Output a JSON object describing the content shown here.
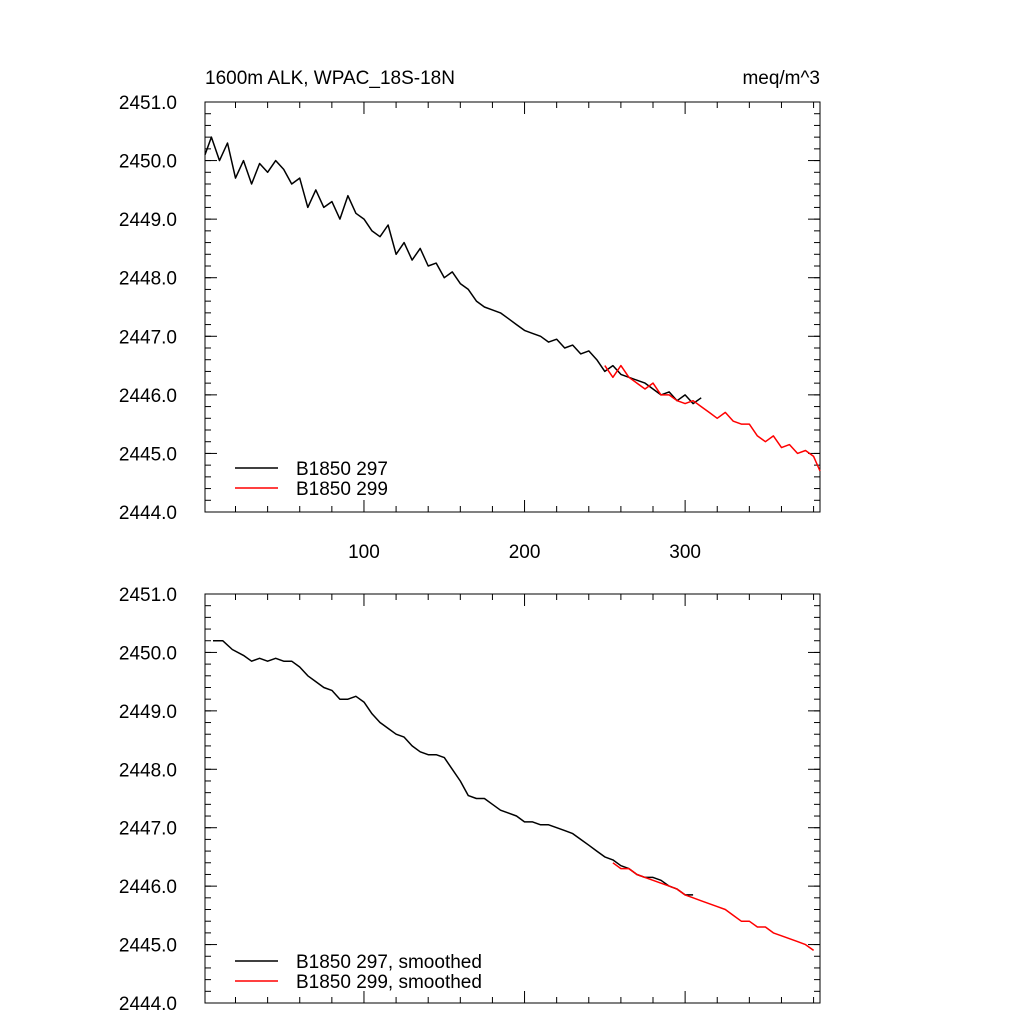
{
  "chart_data": [
    {
      "type": "line",
      "title_left": "1600m ALK, WPAC_18S-18N",
      "title_right": "meq/m^3",
      "xlim": [
        1,
        384
      ],
      "ylim": [
        2444.0,
        2451.0
      ],
      "x_ticks": [
        "100",
        "200",
        "300"
      ],
      "y_ticks": [
        "2444.0",
        "2445.0",
        "2446.0",
        "2447.0",
        "2448.0",
        "2449.0",
        "2450.0",
        "2451.0"
      ],
      "legend_position": "bottom-left",
      "series": [
        {
          "name": "B1850 297",
          "color": "#000000",
          "x": [
            1,
            5,
            10,
            15,
            20,
            25,
            30,
            35,
            40,
            45,
            50,
            55,
            60,
            65,
            70,
            75,
            80,
            85,
            90,
            95,
            100,
            105,
            110,
            115,
            120,
            125,
            130,
            135,
            140,
            145,
            150,
            155,
            160,
            165,
            170,
            175,
            180,
            185,
            190,
            195,
            200,
            205,
            210,
            215,
            220,
            225,
            230,
            235,
            240,
            245,
            250,
            255,
            260,
            265,
            270,
            275,
            280,
            285,
            290,
            295,
            300,
            305,
            310
          ],
          "y": [
            2450.1,
            2450.4,
            2450.0,
            2450.3,
            2449.7,
            2450.0,
            2449.6,
            2449.95,
            2449.8,
            2450.0,
            2449.85,
            2449.6,
            2449.7,
            2449.2,
            2449.5,
            2449.2,
            2449.3,
            2449.0,
            2449.4,
            2449.1,
            2449.0,
            2448.8,
            2448.7,
            2448.9,
            2448.4,
            2448.6,
            2448.3,
            2448.5,
            2448.2,
            2448.25,
            2448.0,
            2448.1,
            2447.9,
            2447.8,
            2447.6,
            2447.5,
            2447.45,
            2447.4,
            2447.3,
            2447.2,
            2447.1,
            2447.05,
            2447.0,
            2446.9,
            2446.95,
            2446.8,
            2446.85,
            2446.7,
            2446.75,
            2446.6,
            2446.4,
            2446.5,
            2446.35,
            2446.3,
            2446.25,
            2446.2,
            2446.1,
            2446.0,
            2446.05,
            2445.9,
            2446.0,
            2445.85,
            2445.95
          ]
        },
        {
          "name": "B1850 299",
          "color": "#ff0000",
          "x": [
            250,
            255,
            260,
            265,
            270,
            275,
            280,
            285,
            290,
            295,
            300,
            305,
            310,
            315,
            320,
            325,
            330,
            335,
            340,
            345,
            350,
            355,
            360,
            365,
            370,
            375,
            380,
            384
          ],
          "y": [
            2446.5,
            2446.3,
            2446.5,
            2446.3,
            2446.2,
            2446.1,
            2446.2,
            2446.0,
            2446.0,
            2445.9,
            2445.85,
            2445.9,
            2445.8,
            2445.7,
            2445.6,
            2445.7,
            2445.55,
            2445.5,
            2445.5,
            2445.3,
            2445.2,
            2445.3,
            2445.1,
            2445.15,
            2445.0,
            2445.05,
            2444.95,
            2444.7
          ]
        }
      ]
    },
    {
      "type": "line",
      "xlim": [
        1,
        384
      ],
      "ylim": [
        2444.0,
        2451.0
      ],
      "y_ticks": [
        "2444.0",
        "2445.0",
        "2446.0",
        "2447.0",
        "2448.0",
        "2449.0",
        "2450.0",
        "2451.0"
      ],
      "legend_position": "bottom-left",
      "series": [
        {
          "name": "B1850 297, smoothed",
          "color": "#000000",
          "x": [
            6,
            12,
            18,
            25,
            30,
            35,
            40,
            45,
            50,
            55,
            60,
            65,
            70,
            75,
            80,
            85,
            90,
            95,
            100,
            105,
            110,
            115,
            120,
            125,
            130,
            135,
            140,
            145,
            150,
            155,
            160,
            165,
            170,
            175,
            180,
            185,
            190,
            195,
            200,
            205,
            210,
            215,
            220,
            225,
            230,
            235,
            240,
            245,
            250,
            255,
            260,
            265,
            270,
            275,
            280,
            285,
            290,
            295,
            300,
            305
          ],
          "y": [
            2450.2,
            2450.2,
            2450.05,
            2449.95,
            2449.85,
            2449.9,
            2449.85,
            2449.9,
            2449.85,
            2449.85,
            2449.75,
            2449.6,
            2449.5,
            2449.4,
            2449.35,
            2449.2,
            2449.2,
            2449.25,
            2449.15,
            2448.95,
            2448.8,
            2448.7,
            2448.6,
            2448.55,
            2448.4,
            2448.3,
            2448.25,
            2448.25,
            2448.2,
            2448.0,
            2447.8,
            2447.55,
            2447.5,
            2447.5,
            2447.4,
            2447.3,
            2447.25,
            2447.2,
            2447.1,
            2447.1,
            2447.05,
            2447.05,
            2447.0,
            2446.95,
            2446.9,
            2446.8,
            2446.7,
            2446.6,
            2446.5,
            2446.45,
            2446.35,
            2446.3,
            2446.2,
            2446.15,
            2446.15,
            2446.1,
            2446.0,
            2445.95,
            2445.85,
            2445.85
          ]
        },
        {
          "name": "B1850 299, smoothed",
          "color": "#ff0000",
          "x": [
            255,
            260,
            265,
            270,
            275,
            280,
            285,
            290,
            295,
            300,
            305,
            310,
            315,
            320,
            325,
            330,
            335,
            340,
            345,
            350,
            355,
            360,
            365,
            370,
            375,
            380
          ],
          "y": [
            2446.4,
            2446.3,
            2446.3,
            2446.2,
            2446.15,
            2446.1,
            2446.05,
            2446.0,
            2445.95,
            2445.85,
            2445.8,
            2445.75,
            2445.7,
            2445.65,
            2445.6,
            2445.5,
            2445.4,
            2445.4,
            2445.3,
            2445.3,
            2445.2,
            2445.15,
            2445.1,
            2445.05,
            2445.0,
            2444.9
          ]
        }
      ]
    }
  ]
}
